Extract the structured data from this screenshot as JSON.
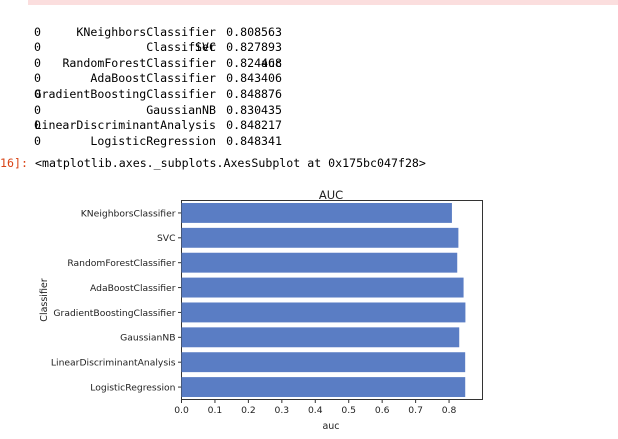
{
  "cell": {
    "prompt_label": "16]:",
    "output_repr": "<matplotlib.axes._subplots.AxesSubplot at 0x175bc047f28>"
  },
  "dataframe": {
    "columns": [
      "Classifier",
      "auc"
    ],
    "rows": [
      {
        "index": "0",
        "classifier": "KNeighborsClassifier",
        "auc": "0.808563"
      },
      {
        "index": "0",
        "classifier": "SVC",
        "auc": "0.827893"
      },
      {
        "index": "0",
        "classifier": "RandomForestClassifier",
        "auc": "0.824468"
      },
      {
        "index": "0",
        "classifier": "AdaBoostClassifier",
        "auc": "0.843406"
      },
      {
        "index": "0",
        "classifier": "GradientBoostingClassifier",
        "auc": "0.848876"
      },
      {
        "index": "0",
        "classifier": "GaussianNB",
        "auc": "0.830435"
      },
      {
        "index": "0",
        "classifier": "LinearDiscriminantAnalysis",
        "auc": "0.848217"
      },
      {
        "index": "0",
        "classifier": "LogisticRegression",
        "auc": "0.848341"
      }
    ]
  },
  "chart_data": {
    "type": "bar",
    "orientation": "horizontal",
    "title": "AUC",
    "xlabel": "auc",
    "ylabel": "Classifier",
    "categories": [
      "KNeighborsClassifier",
      "SVC",
      "RandomForestClassifier",
      "AdaBoostClassifier",
      "GradientBoostingClassifier",
      "GaussianNB",
      "LinearDiscriminantAnalysis",
      "LogisticRegression"
    ],
    "values": [
      0.808563,
      0.827893,
      0.824468,
      0.843406,
      0.848876,
      0.830435,
      0.848217,
      0.848341
    ],
    "xticks": [
      "0.0",
      "0.1",
      "0.2",
      "0.3",
      "0.4",
      "0.5",
      "0.6",
      "0.7",
      "0.8"
    ],
    "xlim": [
      0,
      0.9
    ],
    "bar_color": "#5a7dc4",
    "grid": false
  }
}
